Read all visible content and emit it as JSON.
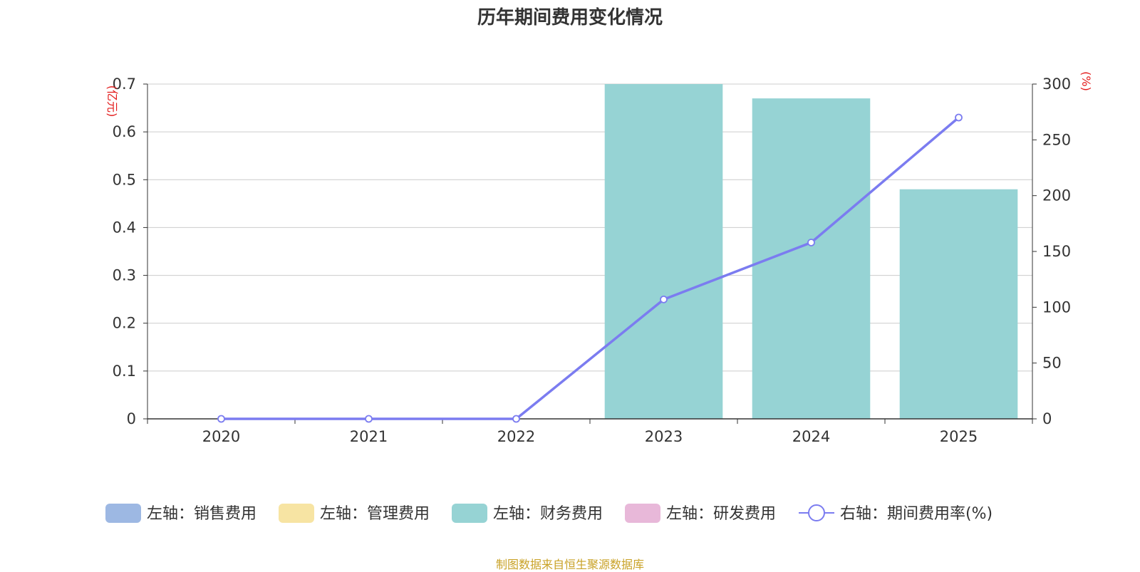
{
  "chart_data": {
    "type": "bar",
    "title": "历年期间费用变化情况",
    "categories": [
      "2020",
      "2021",
      "2022",
      "2023",
      "2024",
      "2025"
    ],
    "left_axis": {
      "unit": "(亿元)",
      "ylim": [
        0,
        0.7
      ],
      "ticks": [
        0,
        0.1,
        0.2,
        0.3,
        0.4,
        0.5,
        0.6,
        0.7
      ]
    },
    "right_axis": {
      "unit": "(%)",
      "ylim": [
        0,
        300
      ],
      "ticks": [
        0,
        50,
        100,
        150,
        200,
        250,
        300
      ]
    },
    "series": [
      {
        "name": "左轴：销售费用",
        "type": "bar",
        "axis": "left",
        "color": "#9db8e3",
        "values": [
          0,
          0,
          0,
          0,
          0,
          0
        ]
      },
      {
        "name": "左轴：管理费用",
        "type": "bar",
        "axis": "left",
        "color": "#f7e4a3",
        "values": [
          0,
          0,
          0,
          0,
          0,
          0
        ]
      },
      {
        "name": "左轴：财务费用",
        "type": "bar",
        "axis": "left",
        "color": "#96d3d4",
        "values": [
          0,
          0,
          0,
          0.7,
          0.67,
          0.48
        ]
      },
      {
        "name": "左轴：研发费用",
        "type": "bar",
        "axis": "left",
        "color": "#e8b8d9",
        "values": [
          0,
          0,
          0,
          0,
          0,
          0
        ]
      },
      {
        "name": "右轴：期间费用率(%)",
        "type": "line",
        "axis": "right",
        "color": "#7b7cf0",
        "values": [
          0,
          0,
          0,
          107,
          158,
          270
        ]
      }
    ],
    "legend_position": "bottom",
    "grid": true
  },
  "source": "制图数据来自恒生聚源数据库"
}
